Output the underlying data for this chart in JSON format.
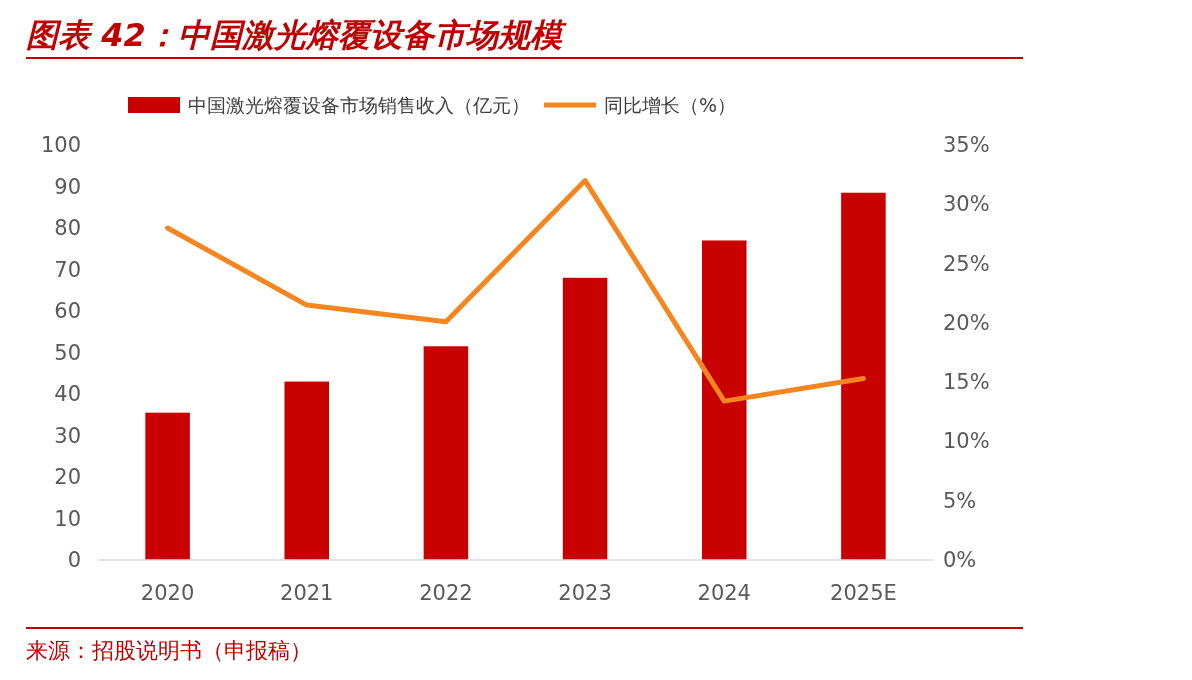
{
  "chart_data": {
    "type": "bar",
    "title": "图表 42：中国激光熔覆设备市场规模",
    "categories": [
      "2020",
      "2021",
      "2022",
      "2023",
      "2024",
      "2025E"
    ],
    "series": [
      {
        "name": "中国激光熔覆设备市场销售收入（亿元）",
        "color": "#c80000",
        "values": [
          35.5,
          43,
          51.5,
          68,
          77,
          88.5
        ]
      },
      {
        "name": "同比增长（%）",
        "color": "#f5861f",
        "type": "line",
        "axis": "y2",
        "values": [
          28,
          21.5,
          20.1,
          32,
          13.4,
          15.3
        ]
      }
    ],
    "ylim": [
      0,
      100
    ],
    "yticks": [
      0,
      10,
      20,
      30,
      40,
      50,
      60,
      70,
      80,
      90,
      100
    ],
    "y2lim": [
      0,
      35
    ],
    "y2ticks": [
      {
        "value": 0,
        "label": "0%"
      },
      {
        "value": 5,
        "label": "5%"
      },
      {
        "value": 10,
        "label": "10%"
      },
      {
        "value": 15,
        "label": "15%"
      },
      {
        "value": 20,
        "label": "20%"
      },
      {
        "value": 25,
        "label": "25%"
      },
      {
        "value": 30,
        "label": "30%"
      },
      {
        "value": 35,
        "label": "35%"
      }
    ],
    "legend": "top",
    "grid": false,
    "marker": "none",
    "line_style": "solid",
    "annotations": [
      "来源：招股说明书（申报稿）"
    ]
  }
}
